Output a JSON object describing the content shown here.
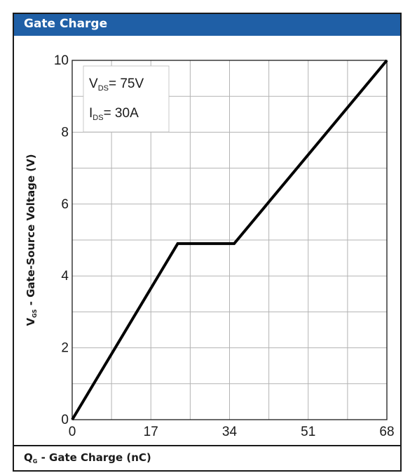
{
  "header": {
    "title": "Gate Charge"
  },
  "annotations": [
    {
      "main": "V",
      "sub": "DS",
      "rest": "= 75V"
    },
    {
      "main": "I",
      "sub": "DS",
      "rest": "= 30A"
    }
  ],
  "chart_data": {
    "type": "line",
    "title": "Gate Charge",
    "xlabel": {
      "main": "Q",
      "sub": "G",
      "rest": " - Gate Charge (nC)"
    },
    "ylabel": {
      "main": "V",
      "sub": "GS",
      "rest": " - Gate-Source Voltage (V)"
    },
    "xlim": [
      0,
      68
    ],
    "ylim": [
      0,
      10
    ],
    "x_ticks": [
      0,
      17,
      34,
      51,
      68
    ],
    "y_ticks": [
      0,
      2,
      4,
      6,
      8,
      10
    ],
    "grid": true,
    "series": [
      {
        "x": [
          0,
          22.8,
          35,
          68
        ],
        "y": [
          0,
          4.9,
          4.9,
          10
        ],
        "color": "#000000"
      }
    ]
  }
}
